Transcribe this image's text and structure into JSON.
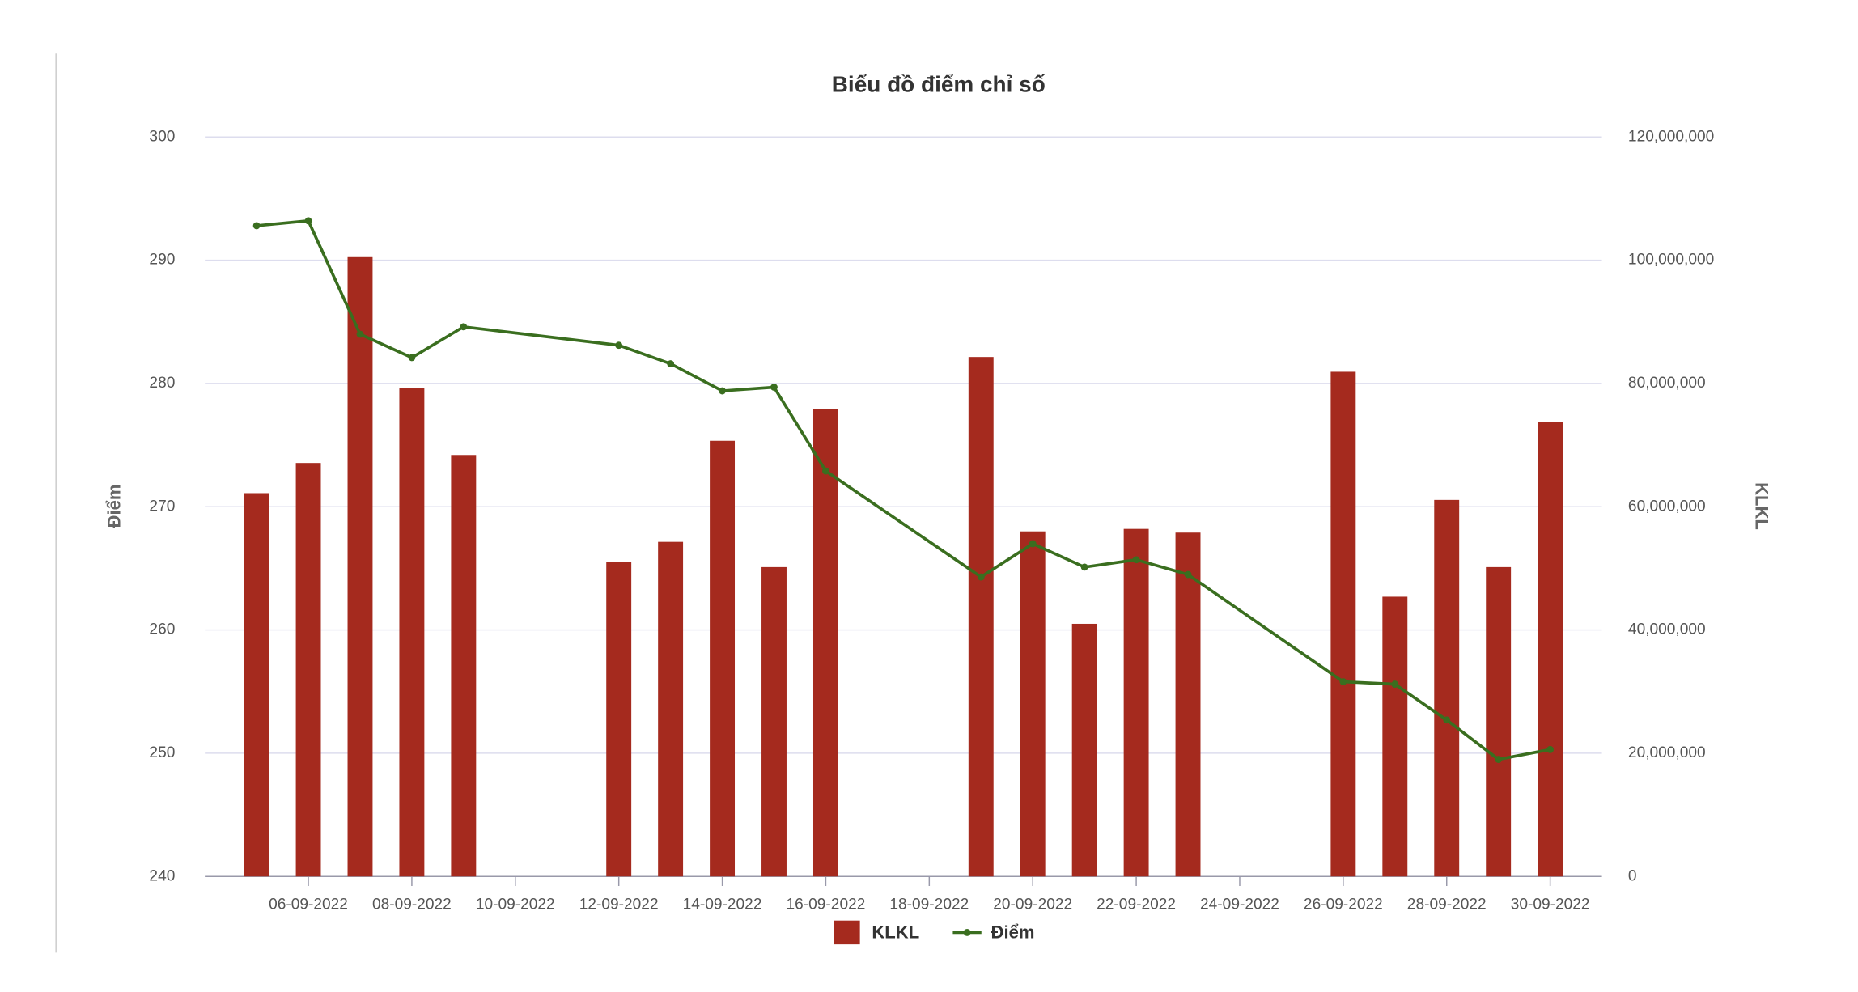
{
  "chart_data": {
    "type": "combo",
    "title": "Biểu đồ điểm chỉ số",
    "y_label": "Điểm",
    "y2_label": "KLKL",
    "x": [
      "05-09-2022",
      "06-09-2022",
      "07-09-2022",
      "08-09-2022",
      "09-09-2022",
      "12-09-2022",
      "13-09-2022",
      "14-09-2022",
      "15-09-2022",
      "16-09-2022",
      "19-09-2022",
      "20-09-2022",
      "21-09-2022",
      "22-09-2022",
      "23-09-2022",
      "26-09-2022",
      "27-09-2022",
      "28-09-2022",
      "29-09-2022",
      "30-09-2022"
    ],
    "xlim": [
      "04-09-2022",
      "01-10-2022"
    ],
    "xticks": [
      "06-09-2022",
      "08-09-2022",
      "10-09-2022",
      "12-09-2022",
      "14-09-2022",
      "16-09-2022",
      "18-09-2022",
      "20-09-2022",
      "22-09-2022",
      "24-09-2022",
      "26-09-2022",
      "28-09-2022",
      "30-09-2022"
    ],
    "ylim": [
      240,
      300
    ],
    "yticks": [
      240,
      250,
      260,
      270,
      280,
      290,
      300
    ],
    "y2lim": [
      0,
      120000000
    ],
    "y2ticks": [
      0,
      {
        "value": 20000000,
        "label": "20,000,000"
      },
      {
        "value": 40000000,
        "label": "40,000,000"
      },
      {
        "value": 60000000,
        "label": "60,000,000"
      },
      {
        "value": 80000000,
        "label": "80,000,000"
      },
      {
        "value": 100000000,
        "label": "100,000,000"
      },
      {
        "value": 120000000,
        "label": "120,000,000"
      }
    ],
    "grid": true,
    "legend": "bottom",
    "series": [
      {
        "name": "KLKL",
        "type": "bar",
        "axis": "y2",
        "color": "#a52a1e",
        "values": [
          62200000,
          67100000,
          100500000,
          79200000,
          68400000,
          51000000,
          54300000,
          70700000,
          50200000,
          75900000,
          84300000,
          56000000,
          41000000,
          56400000,
          55800000,
          81900000,
          45400000,
          61100000,
          50200000,
          73800000
        ]
      },
      {
        "name": "Điểm",
        "type": "line",
        "axis": "y",
        "color": "#3a6e1f",
        "values": [
          292.8,
          293.2,
          284.0,
          282.1,
          284.6,
          283.1,
          281.6,
          279.4,
          279.7,
          272.9,
          264.3,
          267.0,
          265.1,
          265.7,
          264.5,
          255.8,
          255.6,
          252.7,
          249.5,
          250.3
        ]
      }
    ]
  }
}
